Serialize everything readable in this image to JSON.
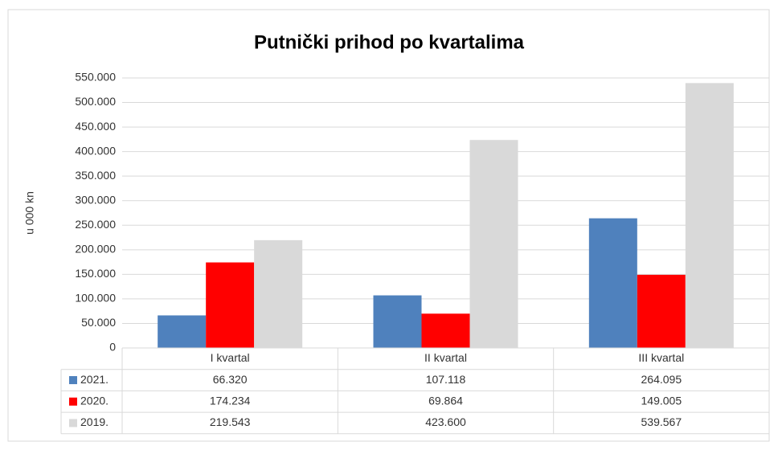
{
  "chart_data": {
    "type": "bar",
    "title": "Putnički prihod po kvartalima",
    "y_label": "u 000 kn",
    "categories": [
      "I kvartal",
      "II kvartal",
      "III kvartal"
    ],
    "series": [
      {
        "name": "2021.",
        "color": "#4f81bd",
        "values": [
          66320,
          107118,
          264095
        ],
        "value_labels": [
          "66.320",
          "107.118",
          "264.095"
        ]
      },
      {
        "name": "2020.",
        "color": "#ff0000",
        "values": [
          174234,
          69864,
          149005
        ],
        "value_labels": [
          "174.234",
          "69.864",
          "149.005"
        ]
      },
      {
        "name": "2019.",
        "color": "#d9d9d9",
        "values": [
          219543,
          423600,
          539567
        ],
        "value_labels": [
          "219.543",
          "423.600",
          "539.567"
        ]
      }
    ],
    "ylim": [
      0,
      550000
    ],
    "yticks": [
      0,
      {
        "value": 50000,
        "label": "50.000"
      },
      {
        "value": 100000,
        "label": "100.000"
      },
      {
        "value": 150000,
        "label": "150.000"
      },
      {
        "value": 200000,
        "label": "200.000"
      },
      {
        "value": 250000,
        "label": "250.000"
      },
      {
        "value": 300000,
        "label": "300.000"
      },
      {
        "value": 350000,
        "label": "350.000"
      },
      {
        "value": 400000,
        "label": "400.000"
      },
      {
        "value": 450000,
        "label": "450.000"
      },
      {
        "value": 500000,
        "label": "500.000"
      },
      {
        "value": 550000,
        "label": "550.000"
      }
    ],
    "grid": true,
    "data_table": true
  }
}
